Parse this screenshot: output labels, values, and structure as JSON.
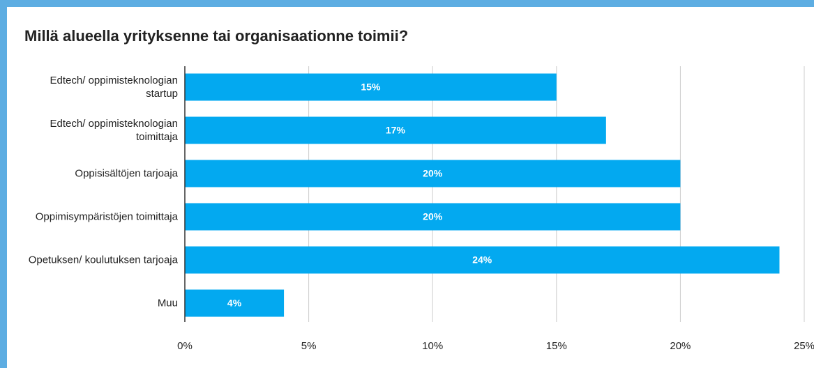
{
  "chart_data": {
    "type": "hbar",
    "title": "Millä alueella yrityksenne tai organisaationne toimii?",
    "categories": [
      "Edtech/ oppimisteknologian startup",
      "Edtech/ oppimisteknologian toimittaja",
      "Oppisisältöjen tarjoaja",
      "Oppimisympäristöjen toimittaja",
      "Opetuksen/ koulutuksen tarjoaja",
      "Muu"
    ],
    "values": [
      15,
      17,
      20,
      20,
      24,
      4
    ],
    "value_labels": [
      "15%",
      "17%",
      "20%",
      "20%",
      "24%",
      "4%"
    ],
    "color": "#03a9f0",
    "xlim": [
      0,
      25
    ],
    "xticks": [
      {
        "value": 0,
        "label": "0%"
      },
      {
        "value": 5,
        "label": "5%"
      },
      {
        "value": 10,
        "label": "10%"
      },
      {
        "value": 15,
        "label": "15%"
      },
      {
        "value": 20,
        "label": "20%"
      },
      {
        "value": 25,
        "label": "25%"
      }
    ],
    "grid": true
  }
}
